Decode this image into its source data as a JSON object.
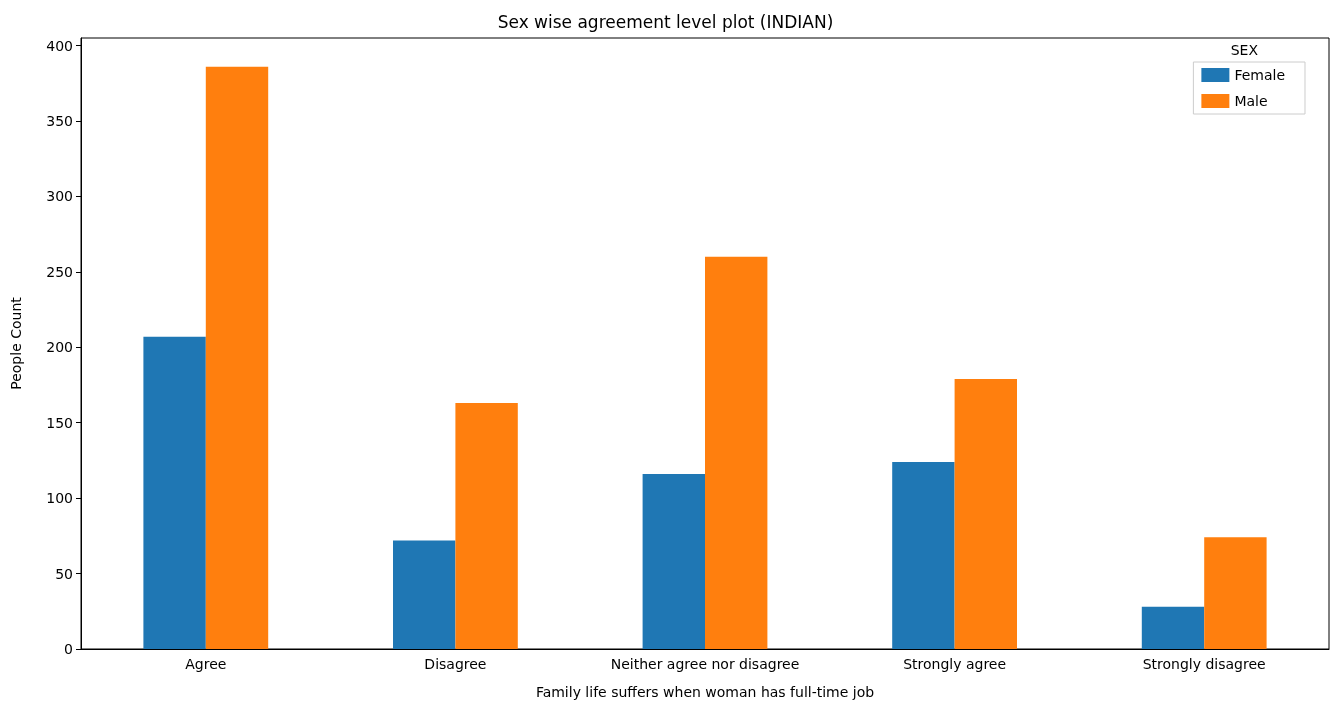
{
  "chart_data": {
    "type": "bar",
    "title": "Sex wise agreement level plot (INDIAN)",
    "xlabel": "Family life suffers when woman has full-time job",
    "ylabel": "People Count",
    "legend_title": "SEX",
    "categories": [
      "Agree",
      "Disagree",
      "Neither agree nor disagree",
      "Strongly agree",
      "Strongly disagree"
    ],
    "series": [
      {
        "name": "Female",
        "color": "#1f77b4",
        "values": [
          207,
          72,
          116,
          124,
          28
        ]
      },
      {
        "name": "Male",
        "color": "#ff7f0e",
        "values": [
          386,
          163,
          260,
          179,
          74
        ]
      }
    ],
    "ylim": [
      0,
      405
    ],
    "yticks": [
      0,
      50,
      100,
      150,
      200,
      250,
      300,
      350,
      400
    ],
    "grid": false,
    "legend": "top right"
  }
}
